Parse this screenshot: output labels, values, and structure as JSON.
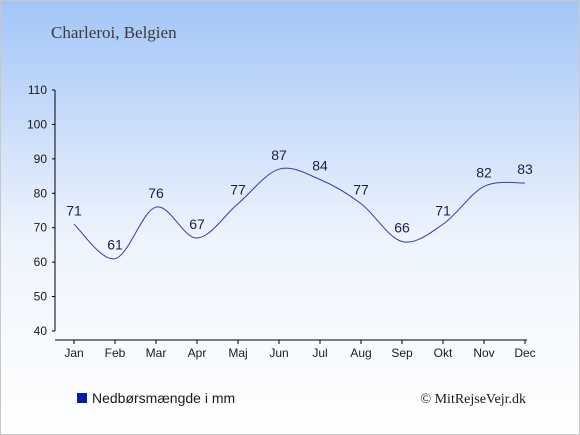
{
  "chart_data": {
    "type": "line",
    "title": "Charleroi, Belgien",
    "categories": [
      "Jan",
      "Feb",
      "Mar",
      "Apr",
      "Maj",
      "Jun",
      "Jul",
      "Aug",
      "Sep",
      "Okt",
      "Nov",
      "Dec"
    ],
    "series": [
      {
        "name": "Nedbørsmængde i mm",
        "values": [
          71,
          61,
          76,
          67,
          77,
          87,
          84,
          77,
          66,
          71,
          82,
          83
        ]
      }
    ],
    "ylim": [
      40,
      110
    ],
    "yticks": [
      40,
      50,
      60,
      70,
      80,
      90,
      100,
      110
    ],
    "grid": false,
    "legend_position": "bottom-left",
    "colors": {
      "background_top": "#a3c5f7",
      "background_bottom": "#ffffff",
      "line": "#2d3fae",
      "legend_marker": "#0a1aa6"
    }
  },
  "copyright": "© MitRejseVejr.dk"
}
